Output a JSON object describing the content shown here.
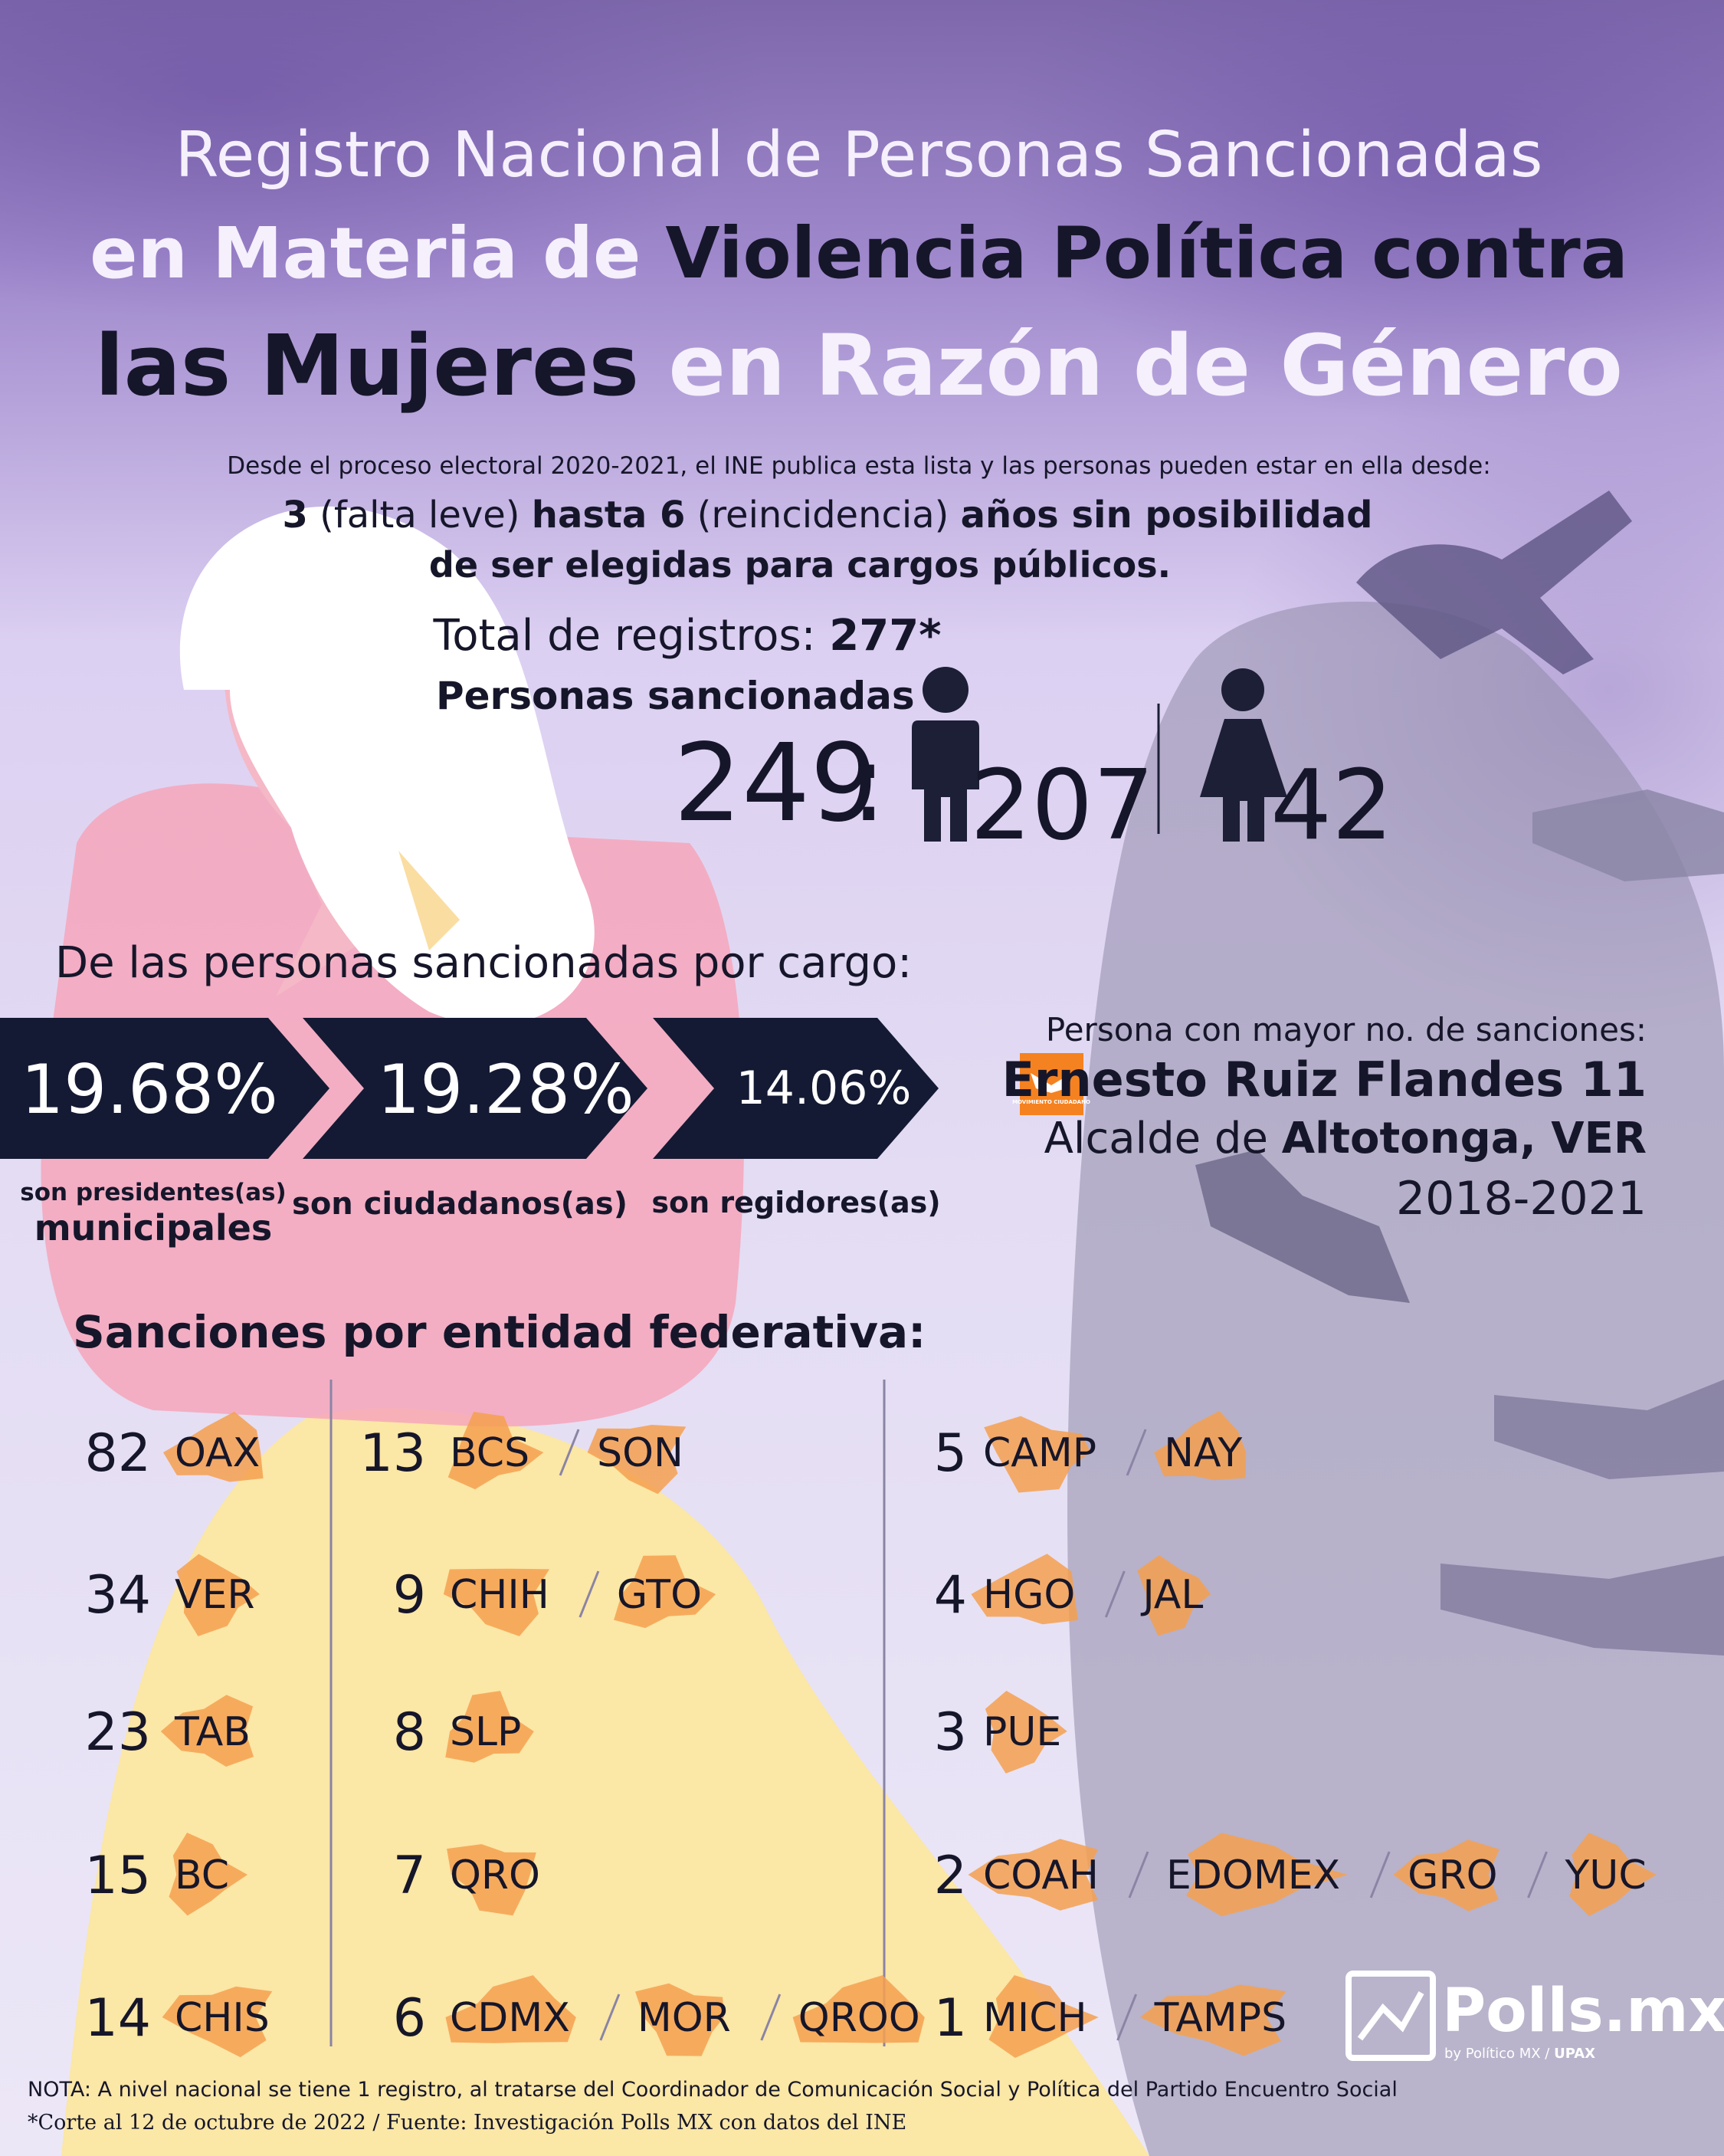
{
  "title": {
    "line1": "Registro Nacional de Personas Sancionadas",
    "line2a": "en Materia de",
    "line2b": "Violencia Política contra",
    "line3a": "las Mujeres",
    "line3b": "en Razón de Género"
  },
  "intro": {
    "text": "Desde el proceso electoral 2020-2021, el INE publica esta lista y las personas pueden estar en ella desde:",
    "min": "3",
    "min_note": "(falta leve)",
    "max": "hasta 6",
    "max_note": "(reincidencia)",
    "tail1": "años sin posibilidad",
    "tail2": "de ser elegidas para cargos públicos."
  },
  "totals": {
    "label": "Total de registros:",
    "value": "277*",
    "sanctioned_label": "Personas sancionadas",
    "sanctioned": "249",
    "separator": ":",
    "men": "207",
    "women": "42"
  },
  "by_role": {
    "heading": "De las personas sancionadas por cargo:",
    "items": [
      {
        "pct": "19.68%",
        "desc": "son presidentes(as)",
        "desc2": "municipales"
      },
      {
        "pct": "19.28%",
        "desc": "son ciudadanos(as)"
      },
      {
        "pct": "14.06%",
        "desc": "son regidores(as)"
      }
    ]
  },
  "top": {
    "heading": "Persona con mayor no. de sanciones:",
    "name": "Ernesto Ruiz Flandes 11",
    "role": "Alcalde de",
    "place": "Altotonga, VER",
    "period": "2018-2021",
    "party_logo": "MOVIMIENTO CIUDADANO"
  },
  "states": {
    "heading": "Sanciones por entidad federativa:",
    "groups": [
      {
        "count": 82,
        "states": [
          "OAX"
        ]
      },
      {
        "count": 34,
        "states": [
          "VER"
        ]
      },
      {
        "count": 23,
        "states": [
          "TAB"
        ]
      },
      {
        "count": 15,
        "states": [
          "BC"
        ]
      },
      {
        "count": 14,
        "states": [
          "CHIS"
        ]
      },
      {
        "count": 13,
        "states": [
          "BCS",
          "SON"
        ]
      },
      {
        "count": 9,
        "states": [
          "CHIH",
          "GTO"
        ]
      },
      {
        "count": 8,
        "states": [
          "SLP"
        ]
      },
      {
        "count": 7,
        "states": [
          "QRO"
        ]
      },
      {
        "count": 6,
        "states": [
          "CDMX",
          "MOR",
          "QROO"
        ]
      },
      {
        "count": 5,
        "states": [
          "CAMP",
          "NAY"
        ]
      },
      {
        "count": 4,
        "states": [
          "HGO",
          "JAL"
        ]
      },
      {
        "count": 3,
        "states": [
          "PUE"
        ]
      },
      {
        "count": 2,
        "states": [
          "COAH",
          "EDOMEX",
          "GRO",
          "YUC"
        ]
      },
      {
        "count": 1,
        "states": [
          "MICH",
          "TAMPS"
        ]
      }
    ]
  },
  "notes": [
    "NOTA: A nivel nacional se tiene 1 registro, al tratarse del Coordinador de Comunicación Social y Política del Partido Encuentro Social",
    "*Corte al 12 de octubre de 2022 / Fuente: Investigación Polls MX con datos del INE"
  ],
  "logo": {
    "name": "Polls.mx",
    "by": "by Político MX",
    "group": "UPAX"
  }
}
